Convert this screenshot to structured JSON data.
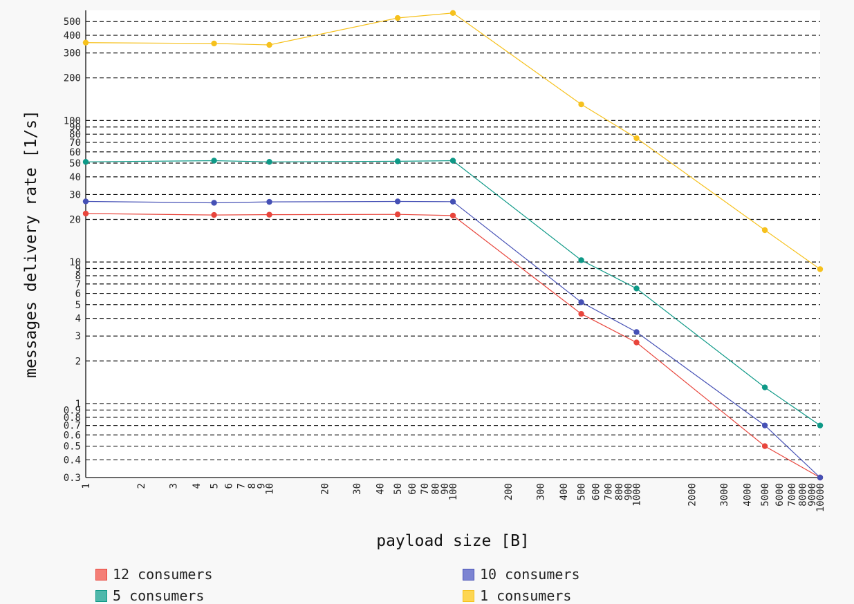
{
  "chart_data": {
    "type": "line",
    "title": "",
    "xlabel": "payload size [B]",
    "ylabel": "messages delivery rate [1/s]",
    "x_scale": "log",
    "y_scale": "log",
    "xlim": [
      1,
      10000
    ],
    "ylim": [
      0.3,
      600
    ],
    "grid": "horizontal dashed",
    "legend_position": "bottom",
    "x_ticks": [
      "1",
      "2",
      "3",
      "4",
      "5",
      "6",
      "7",
      "8",
      "9",
      "10",
      "20",
      "30",
      "40",
      "50",
      "60",
      "70",
      "80",
      "90",
      "100",
      "200",
      "300",
      "400",
      "500",
      "600",
      "700",
      "800",
      "900",
      "1000",
      "2000",
      "3000",
      "4000",
      "5000",
      "6000",
      "7000",
      "8000",
      "9000",
      "10000"
    ],
    "y_ticks": [
      "0.3",
      "0.4",
      "0.5",
      "0.6",
      "0.7",
      "0.8",
      "0.9",
      "1",
      "2",
      "3",
      "4",
      "5",
      "6",
      "7",
      "8",
      "9",
      "10",
      "20",
      "30",
      "40",
      "50",
      "60",
      "70",
      "80",
      "90",
      "100",
      "200",
      "300",
      "400",
      "500"
    ],
    "x": [
      1,
      5,
      10,
      50,
      100,
      500,
      1000,
      5000,
      10000
    ],
    "series": [
      {
        "name": "12 consumers",
        "color": "#e8453c",
        "legend_color": "#f47e76",
        "values": [
          22,
          21.5,
          21.6,
          21.7,
          21.3,
          4.3,
          2.7,
          0.5,
          0.3
        ]
      },
      {
        "name": "10 consumers",
        "color": "#4550b5",
        "legend_color": "#7c84d2",
        "values": [
          26.8,
          26.2,
          26.6,
          26.8,
          26.7,
          5.2,
          3.2,
          0.7,
          0.3
        ]
      },
      {
        "name": "5 consumers",
        "color": "#0e9987",
        "legend_color": "#4fb8ab",
        "values": [
          51,
          52,
          51,
          51.5,
          52,
          10.3,
          6.5,
          1.3,
          0.7
        ]
      },
      {
        "name": "1 consumers",
        "color": "#f6c11d",
        "legend_color": "#fdd652",
        "values": [
          355,
          350,
          342,
          530,
          575,
          130,
          75,
          16.8,
          8.9
        ]
      }
    ]
  }
}
